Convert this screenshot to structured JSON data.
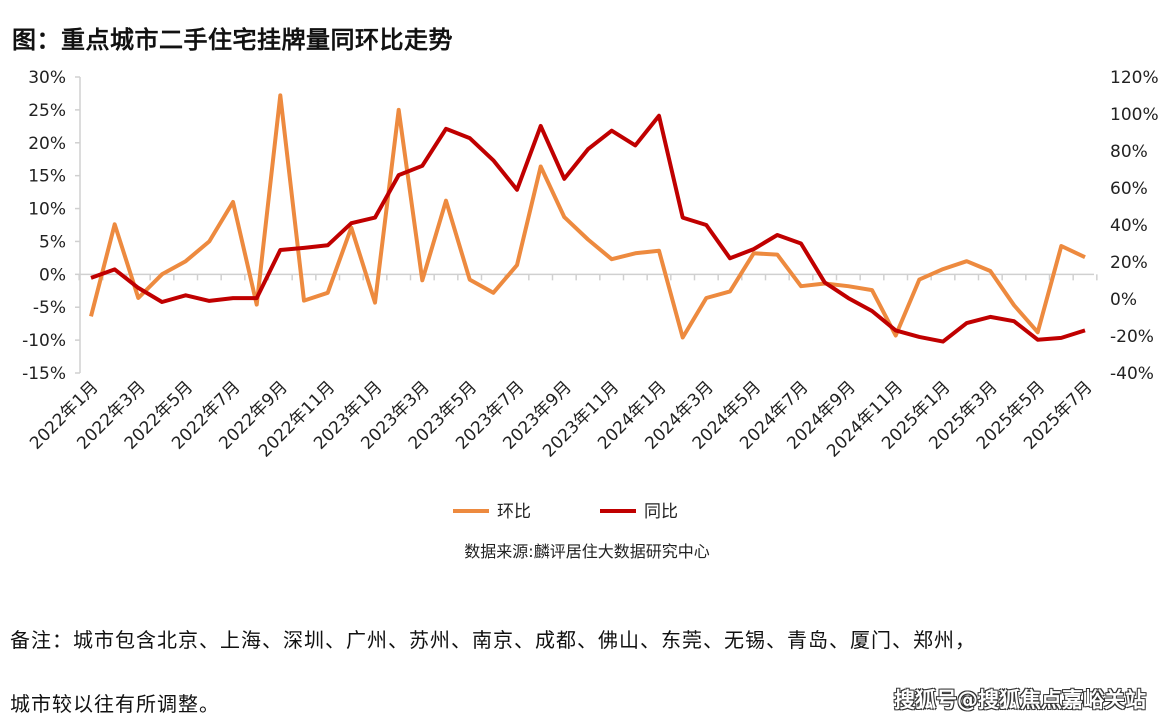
{
  "title": "图：重点城市二手住宅挂牌量同环比走势",
  "source": "数据来源:麟评居住大数据研究中心",
  "note_line1": "备注：城市包含北京、上海、深圳、广州、苏州、南京、成都、佛山、东莞、无锡、青岛、厦门、郑州，",
  "note_line2": "城市较以往有所调整。",
  "watermark": "搜狐号@搜狐焦点嘉峪关站",
  "chart_data": {
    "type": "line",
    "x": [
      "2022年1月",
      "2022年2月",
      "2022年3月",
      "2022年4月",
      "2022年5月",
      "2022年6月",
      "2022年7月",
      "2022年8月",
      "2022年9月",
      "2022年10月",
      "2022年11月",
      "2022年12月",
      "2023年1月",
      "2023年2月",
      "2023年3月",
      "2023年4月",
      "2023年5月",
      "2023年6月",
      "2023年7月",
      "2023年8月",
      "2023年9月",
      "2023年10月",
      "2023年11月",
      "2023年12月",
      "2024年1月",
      "2024年2月",
      "2024年3月",
      "2024年4月",
      "2024年5月",
      "2024年6月",
      "2024年7月",
      "2024年8月",
      "2024年9月",
      "2024年10月",
      "2024年11月",
      "2024年12月",
      "2025年1月",
      "2025年2月",
      "2025年3月",
      "2025年4月",
      "2025年5月",
      "2025年6月",
      "2025年7月"
    ],
    "x_tick_labels": [
      "2022年1月",
      "2022年3月",
      "2022年5月",
      "2022年7月",
      "2022年9月",
      "2022年11月",
      "2023年1月",
      "2023年3月",
      "2023年5月",
      "2023年7月",
      "2023年9月",
      "2023年11月",
      "2024年1月",
      "2024年3月",
      "2024年5月",
      "2024年7月",
      "2024年9月",
      "2024年11月",
      "2025年1月",
      "2025年3月",
      "2025年5月",
      "2025年7月"
    ],
    "y_left": {
      "range": [
        -15,
        30
      ],
      "ticks": [
        "30%",
        "25%",
        "20%",
        "15%",
        "10%",
        "5%",
        "0%",
        "-5%",
        "-10%",
        "-15%"
      ]
    },
    "y_right": {
      "range": [
        -40,
        120
      ],
      "ticks": [
        "120%",
        "100%",
        "80%",
        "60%",
        "40%",
        "20%",
        "0%",
        "-20%",
        "-40%"
      ]
    },
    "grid": false,
    "legend": "bottom",
    "series": [
      {
        "name": "环比",
        "axis": "left",
        "color": "#ED8A3F",
        "values": [
          -6.4,
          7.6,
          -3.6,
          0,
          2,
          5,
          11,
          -4.6,
          27.2,
          -4,
          -2.8,
          7.1,
          -4.3,
          25,
          -0.9,
          11.2,
          -0.8,
          -2.8,
          1.4,
          16.4,
          8.7,
          5.3,
          2.3,
          3.2,
          3.6,
          -9.6,
          -3.6,
          -2.6,
          3.2,
          3,
          -1.8,
          -1.4,
          -1.8,
          -2.4,
          -9.3,
          -0.8,
          0.8,
          2,
          0.5,
          -4.7,
          -8.8,
          4.3,
          2.6
        ]
      },
      {
        "name": "同比",
        "axis": "right",
        "color": "#C00000",
        "values": [
          11.4,
          16,
          6,
          -1.6,
          2,
          -1,
          0.5,
          0.5,
          26.5,
          27.6,
          29,
          41,
          44,
          67,
          72,
          92,
          87,
          75,
          59,
          93.5,
          65,
          81,
          91,
          83,
          99,
          44,
          40,
          22,
          27,
          34.6,
          30,
          9,
          0.5,
          -6.5,
          -17,
          -20.5,
          -23,
          -13,
          -9.7,
          -12,
          -22,
          -21,
          -17
        ]
      }
    ]
  }
}
